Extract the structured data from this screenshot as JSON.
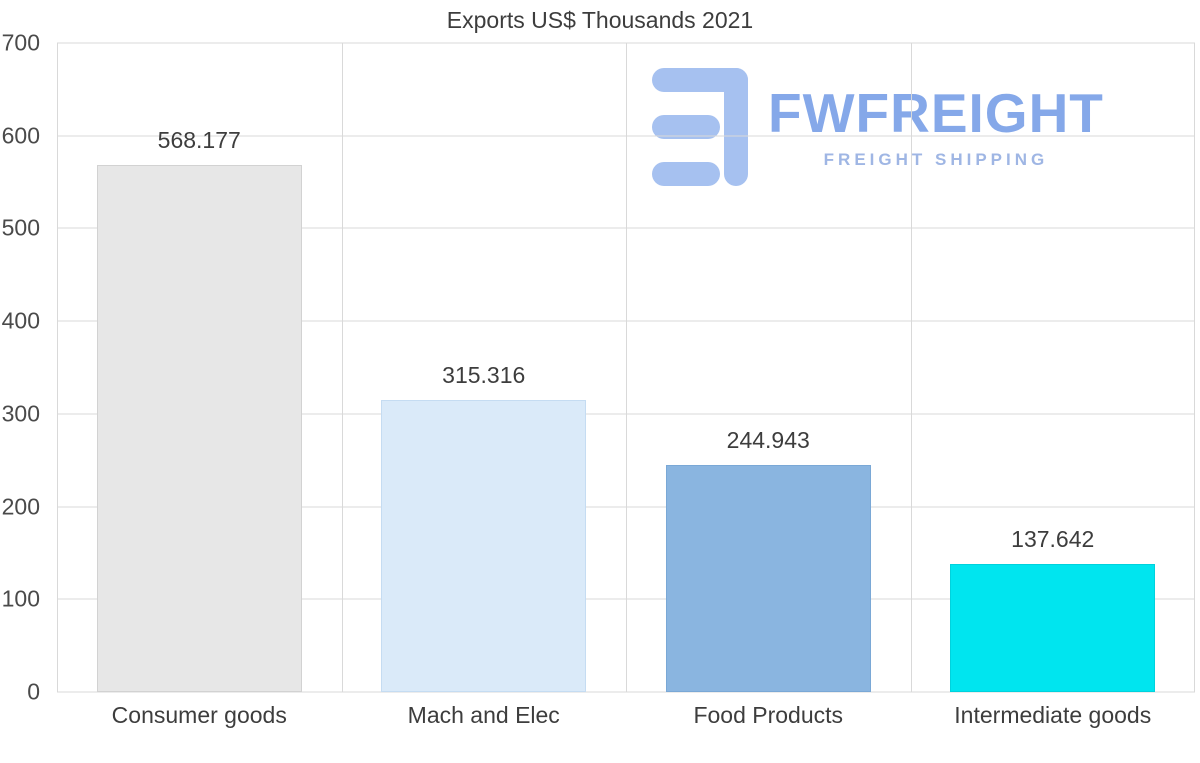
{
  "chart_data": {
    "type": "bar",
    "title": "Exports US$ Thousands 2021",
    "categories": [
      "Consumer goods",
      "Mach and Elec",
      "Food Products",
      "Intermediate goods"
    ],
    "values": [
      568.177,
      315.316,
      244.943,
      137.642
    ],
    "value_labels": [
      "568.177",
      "315.316",
      "244.943",
      "137.642"
    ],
    "bar_colors": [
      "#e7e7e7",
      "#daeaf9",
      "#8ab5e0",
      "#00e5ef"
    ],
    "bar_border_colors": [
      "#d2d2d2",
      "#c5dcf2",
      "#7aa8d6",
      "#00d2dd"
    ],
    "xlabel": "",
    "ylabel": "",
    "ylim": [
      0,
      700
    ],
    "yticks": [
      0,
      100,
      200,
      300,
      400,
      500,
      600,
      700
    ],
    "grid": "horizontal-and-vertical",
    "legend_position": "none"
  },
  "logo": {
    "name": "FWFREIGHT",
    "tagline": "FREIGHT SHIPPING",
    "brand_color": "#85a8e9",
    "icon_color": "#a6c1f0"
  },
  "colors": {
    "background": "#ffffff",
    "gridline": "#d9d9d9",
    "text": "#3d3d3d"
  }
}
